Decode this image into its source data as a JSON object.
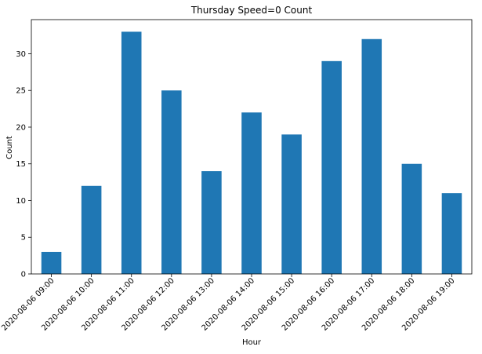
{
  "chart_data": {
    "type": "bar",
    "title": "Thursday Speed=0 Count",
    "xlabel": "Hour",
    "ylabel": "Count",
    "categories": [
      "2020-08-06 09:00",
      "2020-08-06 10:00",
      "2020-08-06 11:00",
      "2020-08-06 12:00",
      "2020-08-06 13:00",
      "2020-08-06 14:00",
      "2020-08-06 15:00",
      "2020-08-06 16:00",
      "2020-08-06 17:00",
      "2020-08-06 18:00",
      "2020-08-06 19:00"
    ],
    "values": [
      3,
      12,
      33,
      25,
      14,
      22,
      19,
      29,
      32,
      15,
      11
    ],
    "yticks": [
      0,
      5,
      10,
      15,
      20,
      25,
      30
    ],
    "ylim": [
      0,
      34.65
    ],
    "bar_color": "#1f77b4",
    "grid": false,
    "legend": "none"
  }
}
